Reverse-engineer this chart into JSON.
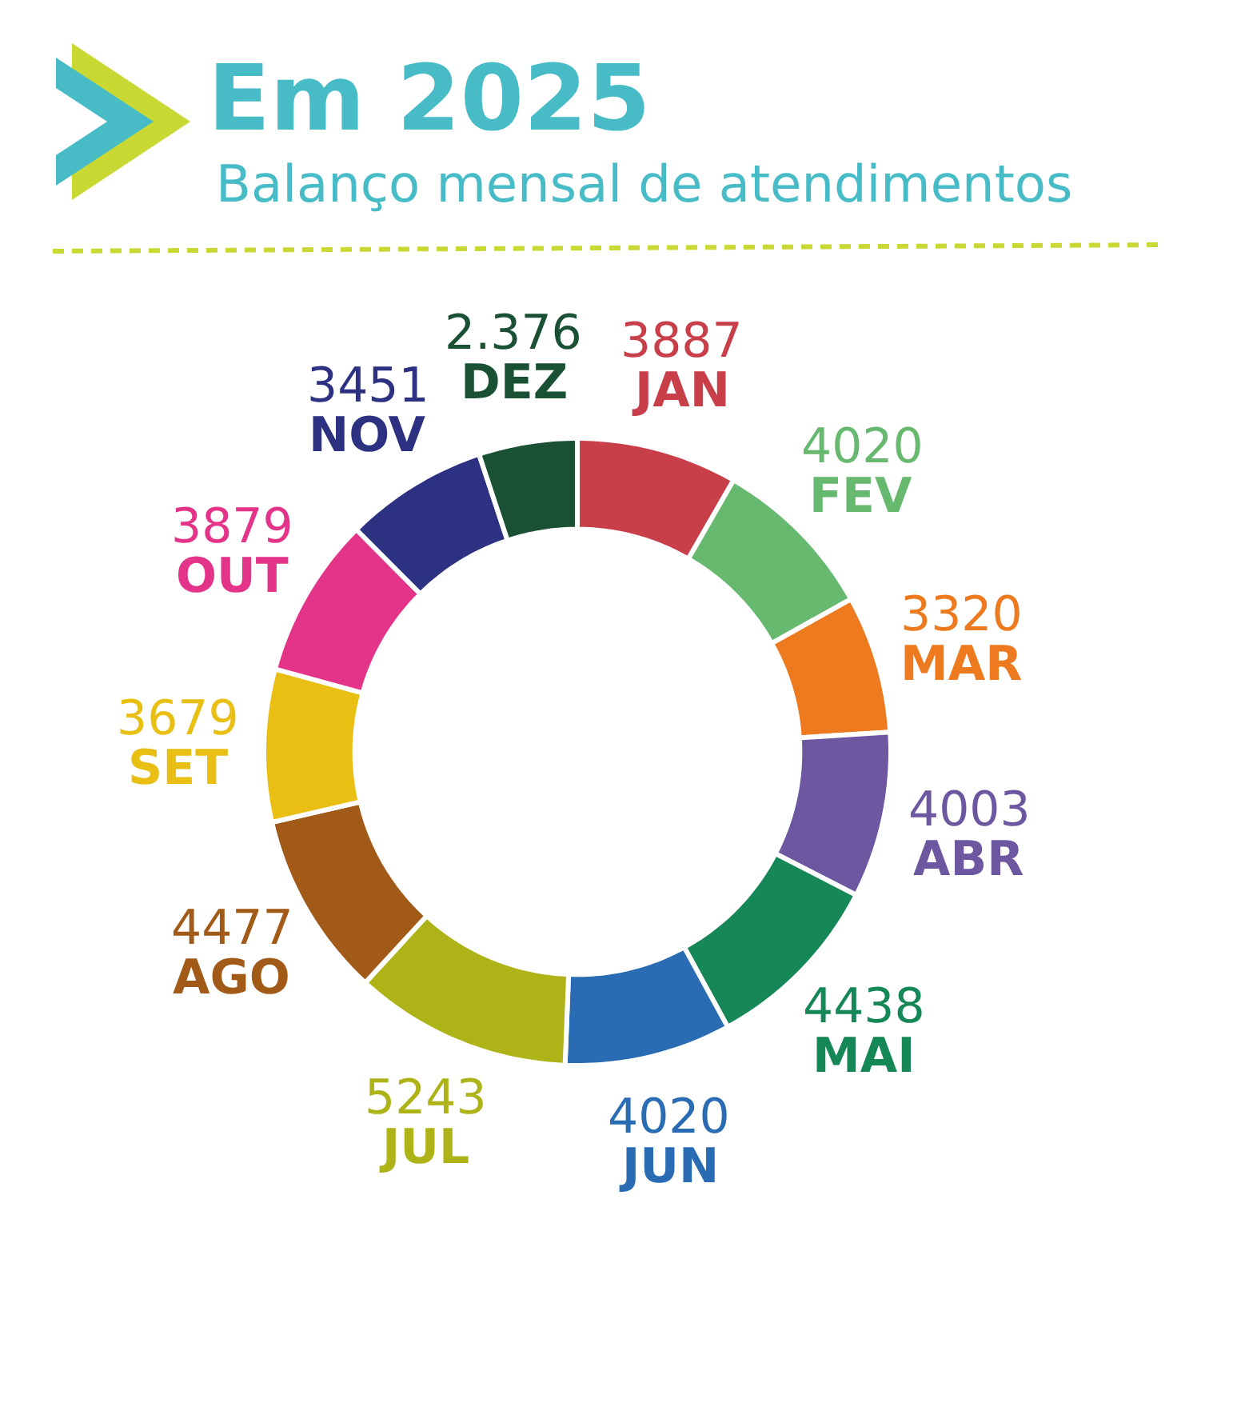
{
  "chart_data": {
    "type": "donut",
    "title": "Em 2025",
    "subtitle": "Balanço mensal de atendimentos",
    "categories": [
      "JAN",
      "FEV",
      "MAR",
      "ABR",
      "MAI",
      "JUN",
      "JUL",
      "AGO",
      "SET",
      "OUT",
      "NOV",
      "DEZ"
    ],
    "values": [
      3887,
      4020,
      3320,
      4003,
      4438,
      4020,
      5243,
      4477,
      3679,
      3879,
      3451,
      2376
    ],
    "value_labels": [
      "3887",
      "4020",
      "3320",
      "4003",
      "4438",
      "4020",
      "5243",
      "4477",
      "3679",
      "3879",
      "3451",
      "2.376"
    ],
    "colors": [
      "#c83f4a",
      "#66b96f",
      "#ee7a1f",
      "#6d57a1",
      "#168756",
      "#2a6cb3",
      "#aeb318",
      "#a25a18",
      "#e9bf14",
      "#e4348a",
      "#2d3181",
      "#1a5135"
    ]
  }
}
